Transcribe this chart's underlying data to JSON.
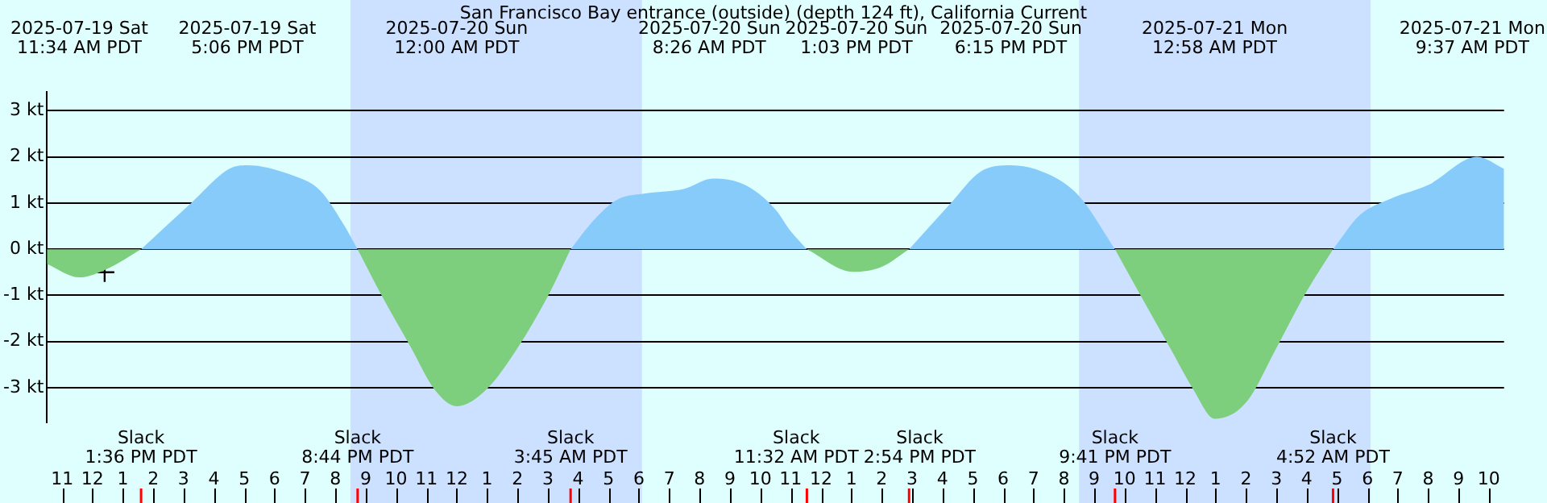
{
  "chart_data": {
    "type": "area",
    "title": "San Francisco Bay entrance (outside) (depth 124 ft), California Current",
    "x": [
      "2025-07-19T10:30",
      "2025-07-19T11:34",
      "2025-07-19T12:30",
      "2025-07-19T13:36",
      "2025-07-19T15:15",
      "2025-07-19T16:30",
      "2025-07-19T17:06",
      "2025-07-19T18:30",
      "2025-07-19T19:30",
      "2025-07-19T20:15",
      "2025-07-19T20:44",
      "2025-07-19T21:30",
      "2025-07-19T22:30",
      "2025-07-19T23:15",
      "2025-07-20T00:00",
      "2025-07-20T01:00",
      "2025-07-20T02:00",
      "2025-07-20T03:00",
      "2025-07-20T03:45",
      "2025-07-20T04:30",
      "2025-07-20T05:15",
      "2025-07-20T06:15",
      "2025-07-20T07:30",
      "2025-07-20T08:26",
      "2025-07-20T09:30",
      "2025-07-20T10:30",
      "2025-07-20T11:00",
      "2025-07-20T11:32",
      "2025-07-20T13:03",
      "2025-07-20T14:00",
      "2025-07-20T14:54",
      "2025-07-20T16:15",
      "2025-07-20T17:15",
      "2025-07-20T18:15",
      "2025-07-20T19:30",
      "2025-07-20T20:30",
      "2025-07-20T21:41",
      "2025-07-20T22:30",
      "2025-07-20T23:30",
      "2025-07-21T00:15",
      "2025-07-21T00:58",
      "2025-07-21T02:00",
      "2025-07-21T03:00",
      "2025-07-21T04:00",
      "2025-07-21T04:52",
      "2025-07-21T05:45",
      "2025-07-21T06:45",
      "2025-07-21T08:00",
      "2025-07-21T09:37",
      "2025-07-21T10:30"
    ],
    "series": [
      {
        "color": "#87cbfa",
        "values": [
          null,
          null,
          null,
          0,
          1.0,
          1.74,
          1.82,
          1.62,
          1.27,
          0.56,
          0,
          null,
          null,
          null,
          null,
          null,
          null,
          null,
          0,
          0.62,
          1.06,
          1.21,
          1.31,
          1.53,
          1.39,
          0.86,
          0.39,
          0,
          null,
          null,
          0,
          0.98,
          1.68,
          1.82,
          1.62,
          1.15,
          0,
          null,
          null,
          null,
          null,
          null,
          null,
          null,
          0,
          0.74,
          1.09,
          1.39,
          2.0,
          1.74
        ]
      },
      {
        "color": "#7dce7d",
        "values": [
          -0.32,
          -0.61,
          -0.42,
          0,
          null,
          null,
          null,
          null,
          null,
          null,
          0,
          -0.97,
          -2.14,
          -3.02,
          -3.4,
          -3.02,
          -2.14,
          -1.02,
          0,
          null,
          null,
          null,
          null,
          null,
          null,
          null,
          null,
          0,
          -0.49,
          -0.38,
          0,
          null,
          null,
          null,
          null,
          null,
          0,
          -0.97,
          -2.14,
          -3.02,
          -3.67,
          -3.32,
          -2.14,
          -0.91,
          0,
          null,
          null,
          null,
          null,
          null
        ]
      },
      {
        "type": "scatter",
        "color": "#000000",
        "marker": "cross",
        "x": [
          "2025-07-19T12:24"
        ],
        "values": [
          -0.5
        ]
      }
    ],
    "xlim": [
      "2025-07-19T10:30",
      "2025-07-21T10:30"
    ],
    "xticks": [
      {
        "value": "2025-07-19T11:00",
        "label": "11"
      },
      {
        "value": "2025-07-19T12:00",
        "label": "12"
      },
      {
        "value": "2025-07-19T13:00",
        "label": "1"
      },
      {
        "value": "2025-07-19T14:00",
        "label": "2"
      },
      {
        "value": "2025-07-19T15:00",
        "label": "3"
      },
      {
        "value": "2025-07-19T16:00",
        "label": "4"
      },
      {
        "value": "2025-07-19T17:00",
        "label": "5"
      },
      {
        "value": "2025-07-19T18:00",
        "label": "6"
      },
      {
        "value": "2025-07-19T19:00",
        "label": "7"
      },
      {
        "value": "2025-07-19T20:00",
        "label": "8"
      },
      {
        "value": "2025-07-19T21:00",
        "label": "9"
      },
      {
        "value": "2025-07-19T22:00",
        "label": "10"
      },
      {
        "value": "2025-07-19T23:00",
        "label": "11"
      },
      {
        "value": "2025-07-20T00:00",
        "label": "12"
      },
      {
        "value": "2025-07-20T01:00",
        "label": "1"
      },
      {
        "value": "2025-07-20T02:00",
        "label": "2"
      },
      {
        "value": "2025-07-20T03:00",
        "label": "3"
      },
      {
        "value": "2025-07-20T04:00",
        "label": "4"
      },
      {
        "value": "2025-07-20T05:00",
        "label": "5"
      },
      {
        "value": "2025-07-20T06:00",
        "label": "6"
      },
      {
        "value": "2025-07-20T07:00",
        "label": "7"
      },
      {
        "value": "2025-07-20T08:00",
        "label": "8"
      },
      {
        "value": "2025-07-20T09:00",
        "label": "9"
      },
      {
        "value": "2025-07-20T10:00",
        "label": "10"
      },
      {
        "value": "2025-07-20T11:00",
        "label": "11"
      },
      {
        "value": "2025-07-20T12:00",
        "label": "12"
      },
      {
        "value": "2025-07-20T13:00",
        "label": "1"
      },
      {
        "value": "2025-07-20T14:00",
        "label": "2"
      },
      {
        "value": "2025-07-20T15:00",
        "label": "3"
      },
      {
        "value": "2025-07-20T16:00",
        "label": "4"
      },
      {
        "value": "2025-07-20T17:00",
        "label": "5"
      },
      {
        "value": "2025-07-20T18:00",
        "label": "6"
      },
      {
        "value": "2025-07-20T19:00",
        "label": "7"
      },
      {
        "value": "2025-07-20T20:00",
        "label": "8"
      },
      {
        "value": "2025-07-20T21:00",
        "label": "9"
      },
      {
        "value": "2025-07-20T22:00",
        "label": "10"
      },
      {
        "value": "2025-07-20T23:00",
        "label": "11"
      },
      {
        "value": "2025-07-21T00:00",
        "label": "12"
      },
      {
        "value": "2025-07-21T01:00",
        "label": "1"
      },
      {
        "value": "2025-07-21T02:00",
        "label": "2"
      },
      {
        "value": "2025-07-21T03:00",
        "label": "3"
      },
      {
        "value": "2025-07-21T04:00",
        "label": "4"
      },
      {
        "value": "2025-07-21T05:00",
        "label": "5"
      },
      {
        "value": "2025-07-21T06:00",
        "label": "6"
      },
      {
        "value": "2025-07-21T07:00",
        "label": "7"
      },
      {
        "value": "2025-07-21T08:00",
        "label": "8"
      },
      {
        "value": "2025-07-21T09:00",
        "label": "9"
      },
      {
        "value": "2025-07-21T10:00",
        "label": "10"
      }
    ],
    "ylim": [
      -3.75,
      3.4
    ],
    "yticks": [
      {
        "value": -3,
        "label": "-3 kt"
      },
      {
        "value": -2,
        "label": "-2 kt"
      },
      {
        "value": -1,
        "label": "-1 kt"
      },
      {
        "value": 0,
        "label": "0 kt"
      },
      {
        "value": 1,
        "label": "1 kt"
      },
      {
        "value": 2,
        "label": "2 kt"
      },
      {
        "value": 3,
        "label": "3 kt"
      }
    ],
    "grid": "y",
    "legend": false,
    "bands": [
      {
        "axis": "x",
        "from": "2025-07-19T20:30",
        "to": "2025-07-20T06:06",
        "color": "#cce0ff"
      },
      {
        "axis": "x",
        "from": "2025-07-20T20:30",
        "to": "2025-07-21T06:06",
        "color": "#cce0ff"
      }
    ],
    "annotations": [
      "2025-07-19 Sat\n11:34 AM PDT",
      "2025-07-19 Sat\n5:06 PM PDT",
      "2025-07-20 Sun\n12:00 AM PDT",
      "2025-07-20 Sun\n8:26 AM PDT",
      "2025-07-20 Sun\n1:03 PM PDT",
      "2025-07-20 Sun\n6:15 PM PDT",
      "2025-07-21 Mon\n12:58 AM PDT",
      "2025-07-21 Mon\n9:37 AM PDT",
      "Slack\n1:36 PM PDT",
      "Slack\n8:44 PM PDT",
      "Slack\n3:45 AM PDT",
      "Slack\n11:32 AM PDT",
      "Slack\n2:54 PM PDT",
      "Slack\n9:41 PM PDT",
      "Slack\n4:52 AM PDT"
    ]
  }
}
